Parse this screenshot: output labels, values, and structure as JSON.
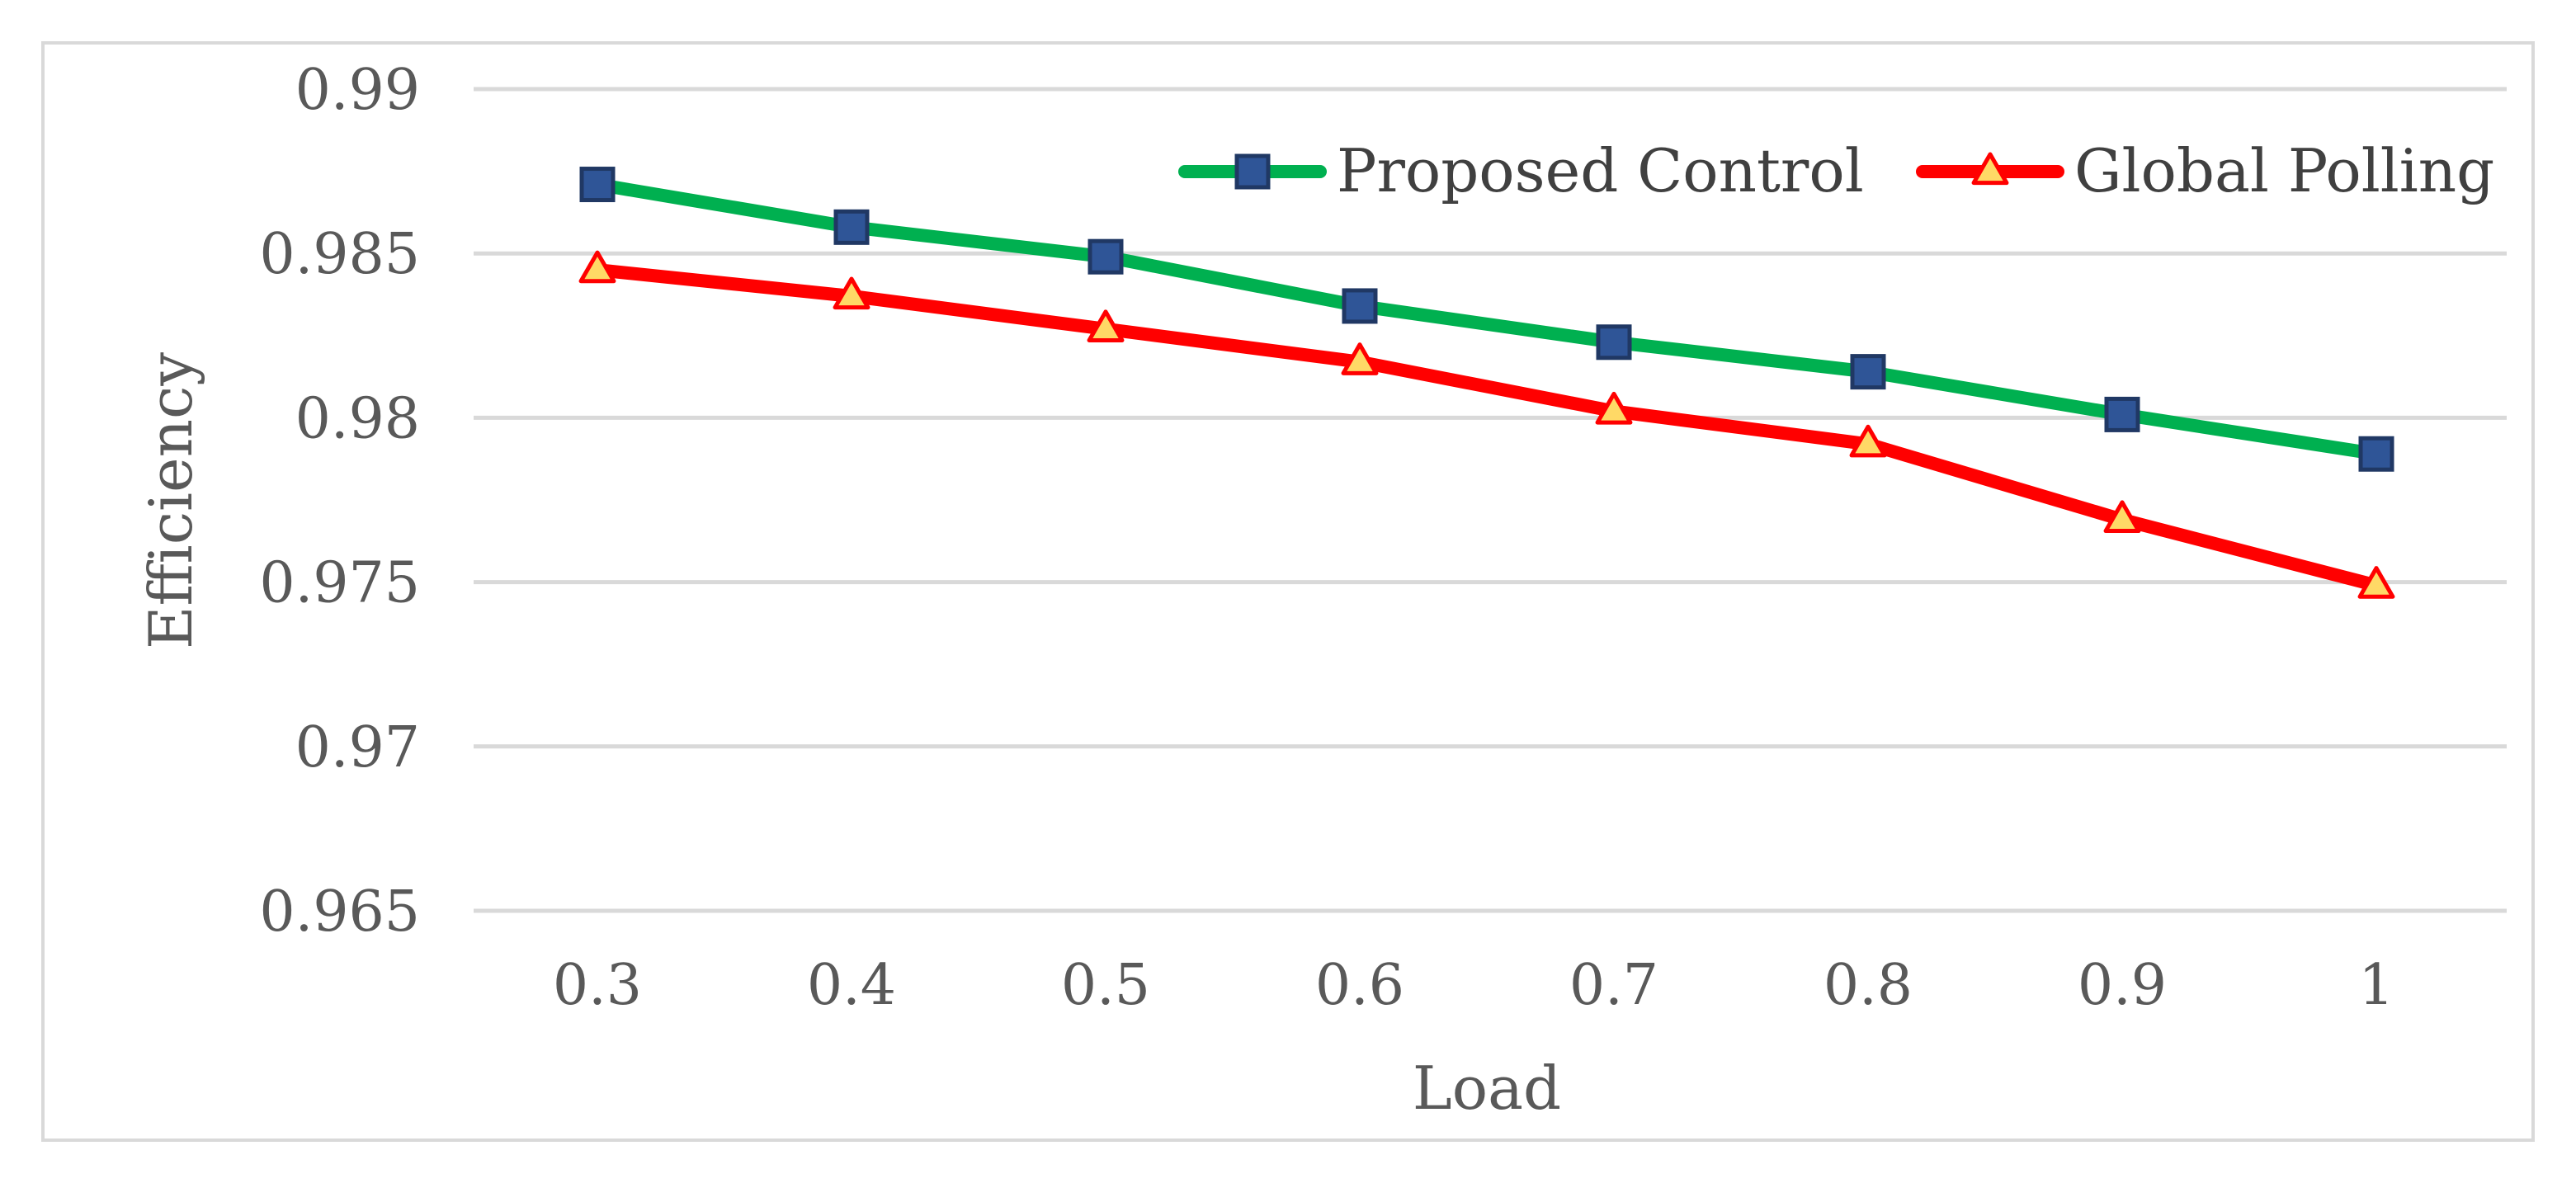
{
  "chart_data": {
    "type": "line",
    "title": "",
    "xlabel": "Load",
    "ylabel": "Efficiency",
    "x": [
      0.3,
      0.4,
      0.5,
      0.6,
      0.7,
      0.8,
      0.9,
      1
    ],
    "x_tick_labels": [
      "0.3",
      "0.4",
      "0.5",
      "0.6",
      "0.7",
      "0.8",
      "0.9",
      "1"
    ],
    "y_tick_labels": [
      "0.99",
      "0.985",
      "0.98",
      "0.975",
      "0.97",
      "0.965"
    ],
    "y_ticks": [
      0.99,
      0.985,
      0.98,
      0.975,
      0.97,
      0.965
    ],
    "ylim": [
      0.965,
      0.99
    ],
    "grid": true,
    "legend_position": "top-right",
    "series": [
      {
        "name": "Proposed Control",
        "values": [
          0.9871,
          0.9858,
          0.9849,
          0.9834,
          0.9823,
          0.9814,
          0.9801,
          0.9789
        ],
        "line_color": "#00b050",
        "marker": "square",
        "marker_fill": "#2f5597",
        "marker_stroke": "#203864"
      },
      {
        "name": "Global Polling",
        "values": [
          0.9845,
          0.9837,
          0.9827,
          0.9817,
          0.9802,
          0.9792,
          0.9769,
          0.9749
        ],
        "line_color": "#ff0000",
        "marker": "triangle",
        "marker_fill": "#ffd966",
        "marker_stroke": "#ff0000"
      }
    ]
  }
}
